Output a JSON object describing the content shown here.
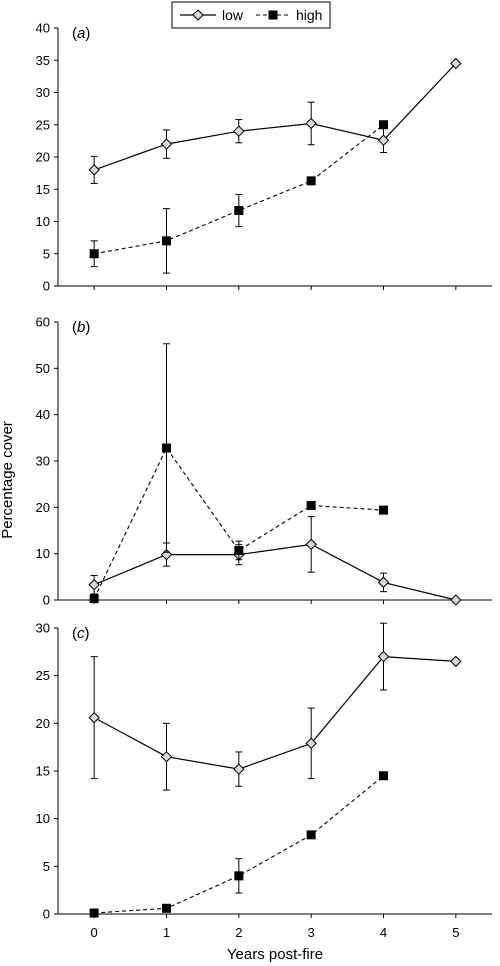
{
  "chart_data": [
    {
      "type": "line",
      "panel_label": "(a)",
      "x": [
        0,
        1,
        2,
        3,
        4,
        5
      ],
      "xlim": [
        -0.5,
        5.5
      ],
      "ylim": [
        0,
        40
      ],
      "yticks": [
        0,
        5,
        10,
        15,
        20,
        25,
        30,
        35,
        40
      ],
      "series": [
        {
          "name": "low",
          "points": [
            {
              "x": 0,
              "y": 18.0,
              "err": 2.1
            },
            {
              "x": 1,
              "y": 22.0,
              "err": 2.2
            },
            {
              "x": 2,
              "y": 24.0,
              "err": 1.8
            },
            {
              "x": 3,
              "y": 25.2,
              "err": 3.3
            },
            {
              "x": 4,
              "y": 22.6,
              "err": 1.9
            },
            {
              "x": 5,
              "y": 34.5,
              "err": null
            }
          ]
        },
        {
          "name": "high",
          "points": [
            {
              "x": 0,
              "y": 5.0,
              "err": 2.0
            },
            {
              "x": 1,
              "y": 7.0,
              "err": 5.0
            },
            {
              "x": 2,
              "y": 11.7,
              "err": 2.5
            },
            {
              "x": 3,
              "y": 16.3,
              "err": null
            },
            {
              "x": 4,
              "y": 25.0,
              "err": null
            }
          ]
        }
      ]
    },
    {
      "type": "line",
      "panel_label": "(b)",
      "x": [
        0,
        1,
        2,
        3,
        4,
        5
      ],
      "xlim": [
        -0.5,
        5.5
      ],
      "ylim": [
        0,
        60
      ],
      "yticks": [
        0,
        10,
        20,
        30,
        40,
        50,
        60
      ],
      "series": [
        {
          "name": "low",
          "points": [
            {
              "x": 0,
              "y": 3.3,
              "err": 2.0
            },
            {
              "x": 1,
              "y": 9.8,
              "err": 2.5
            },
            {
              "x": 2,
              "y": 9.8,
              "err": 2.2
            },
            {
              "x": 3,
              "y": 12.0,
              "err": 6.0
            },
            {
              "x": 4,
              "y": 3.8,
              "err": 2.0
            },
            {
              "x": 5,
              "y": 0.0,
              "err": null
            }
          ]
        },
        {
          "name": "high",
          "points": [
            {
              "x": 0,
              "y": 0.3,
              "err": null
            },
            {
              "x": 1,
              "y": 32.8,
              "err": 22.5
            },
            {
              "x": 2,
              "y": 10.7,
              "err": 2.0
            },
            {
              "x": 3,
              "y": 20.4,
              "err": null
            },
            {
              "x": 4,
              "y": 19.4,
              "err": null
            }
          ]
        }
      ]
    },
    {
      "type": "line",
      "panel_label": "(c)",
      "x": [
        0,
        1,
        2,
        3,
        4,
        5
      ],
      "xlim": [
        -0.5,
        5.5
      ],
      "ylim": [
        0,
        30
      ],
      "yticks": [
        0,
        5,
        10,
        15,
        20,
        25,
        30
      ],
      "xticks": [
        0,
        1,
        2,
        3,
        4,
        5
      ],
      "xlabel": "Years post-fire",
      "series": [
        {
          "name": "low",
          "points": [
            {
              "x": 0,
              "y": 20.6,
              "err": 6.4
            },
            {
              "x": 1,
              "y": 16.5,
              "err": 3.5
            },
            {
              "x": 2,
              "y": 15.2,
              "err": 1.8
            },
            {
              "x": 3,
              "y": 17.9,
              "err": 3.7
            },
            {
              "x": 4,
              "y": 27.0,
              "err": 3.5
            },
            {
              "x": 5,
              "y": 26.5,
              "err": null
            }
          ]
        },
        {
          "name": "high",
          "points": [
            {
              "x": 0,
              "y": 0.1,
              "err": null
            },
            {
              "x": 1,
              "y": 0.6,
              "err": null
            },
            {
              "x": 2,
              "y": 4.0,
              "err": 1.8
            },
            {
              "x": 3,
              "y": 8.3,
              "err": null
            },
            {
              "x": 4,
              "y": 14.5,
              "err": null
            }
          ]
        }
      ]
    }
  ],
  "ylabel": "Percentage cover",
  "legend": {
    "position": "top-center",
    "items": [
      {
        "label": "low",
        "marker": "diamond-open",
        "line": "solid"
      },
      {
        "label": "high",
        "marker": "square-filled",
        "line": "dashed"
      }
    ]
  }
}
